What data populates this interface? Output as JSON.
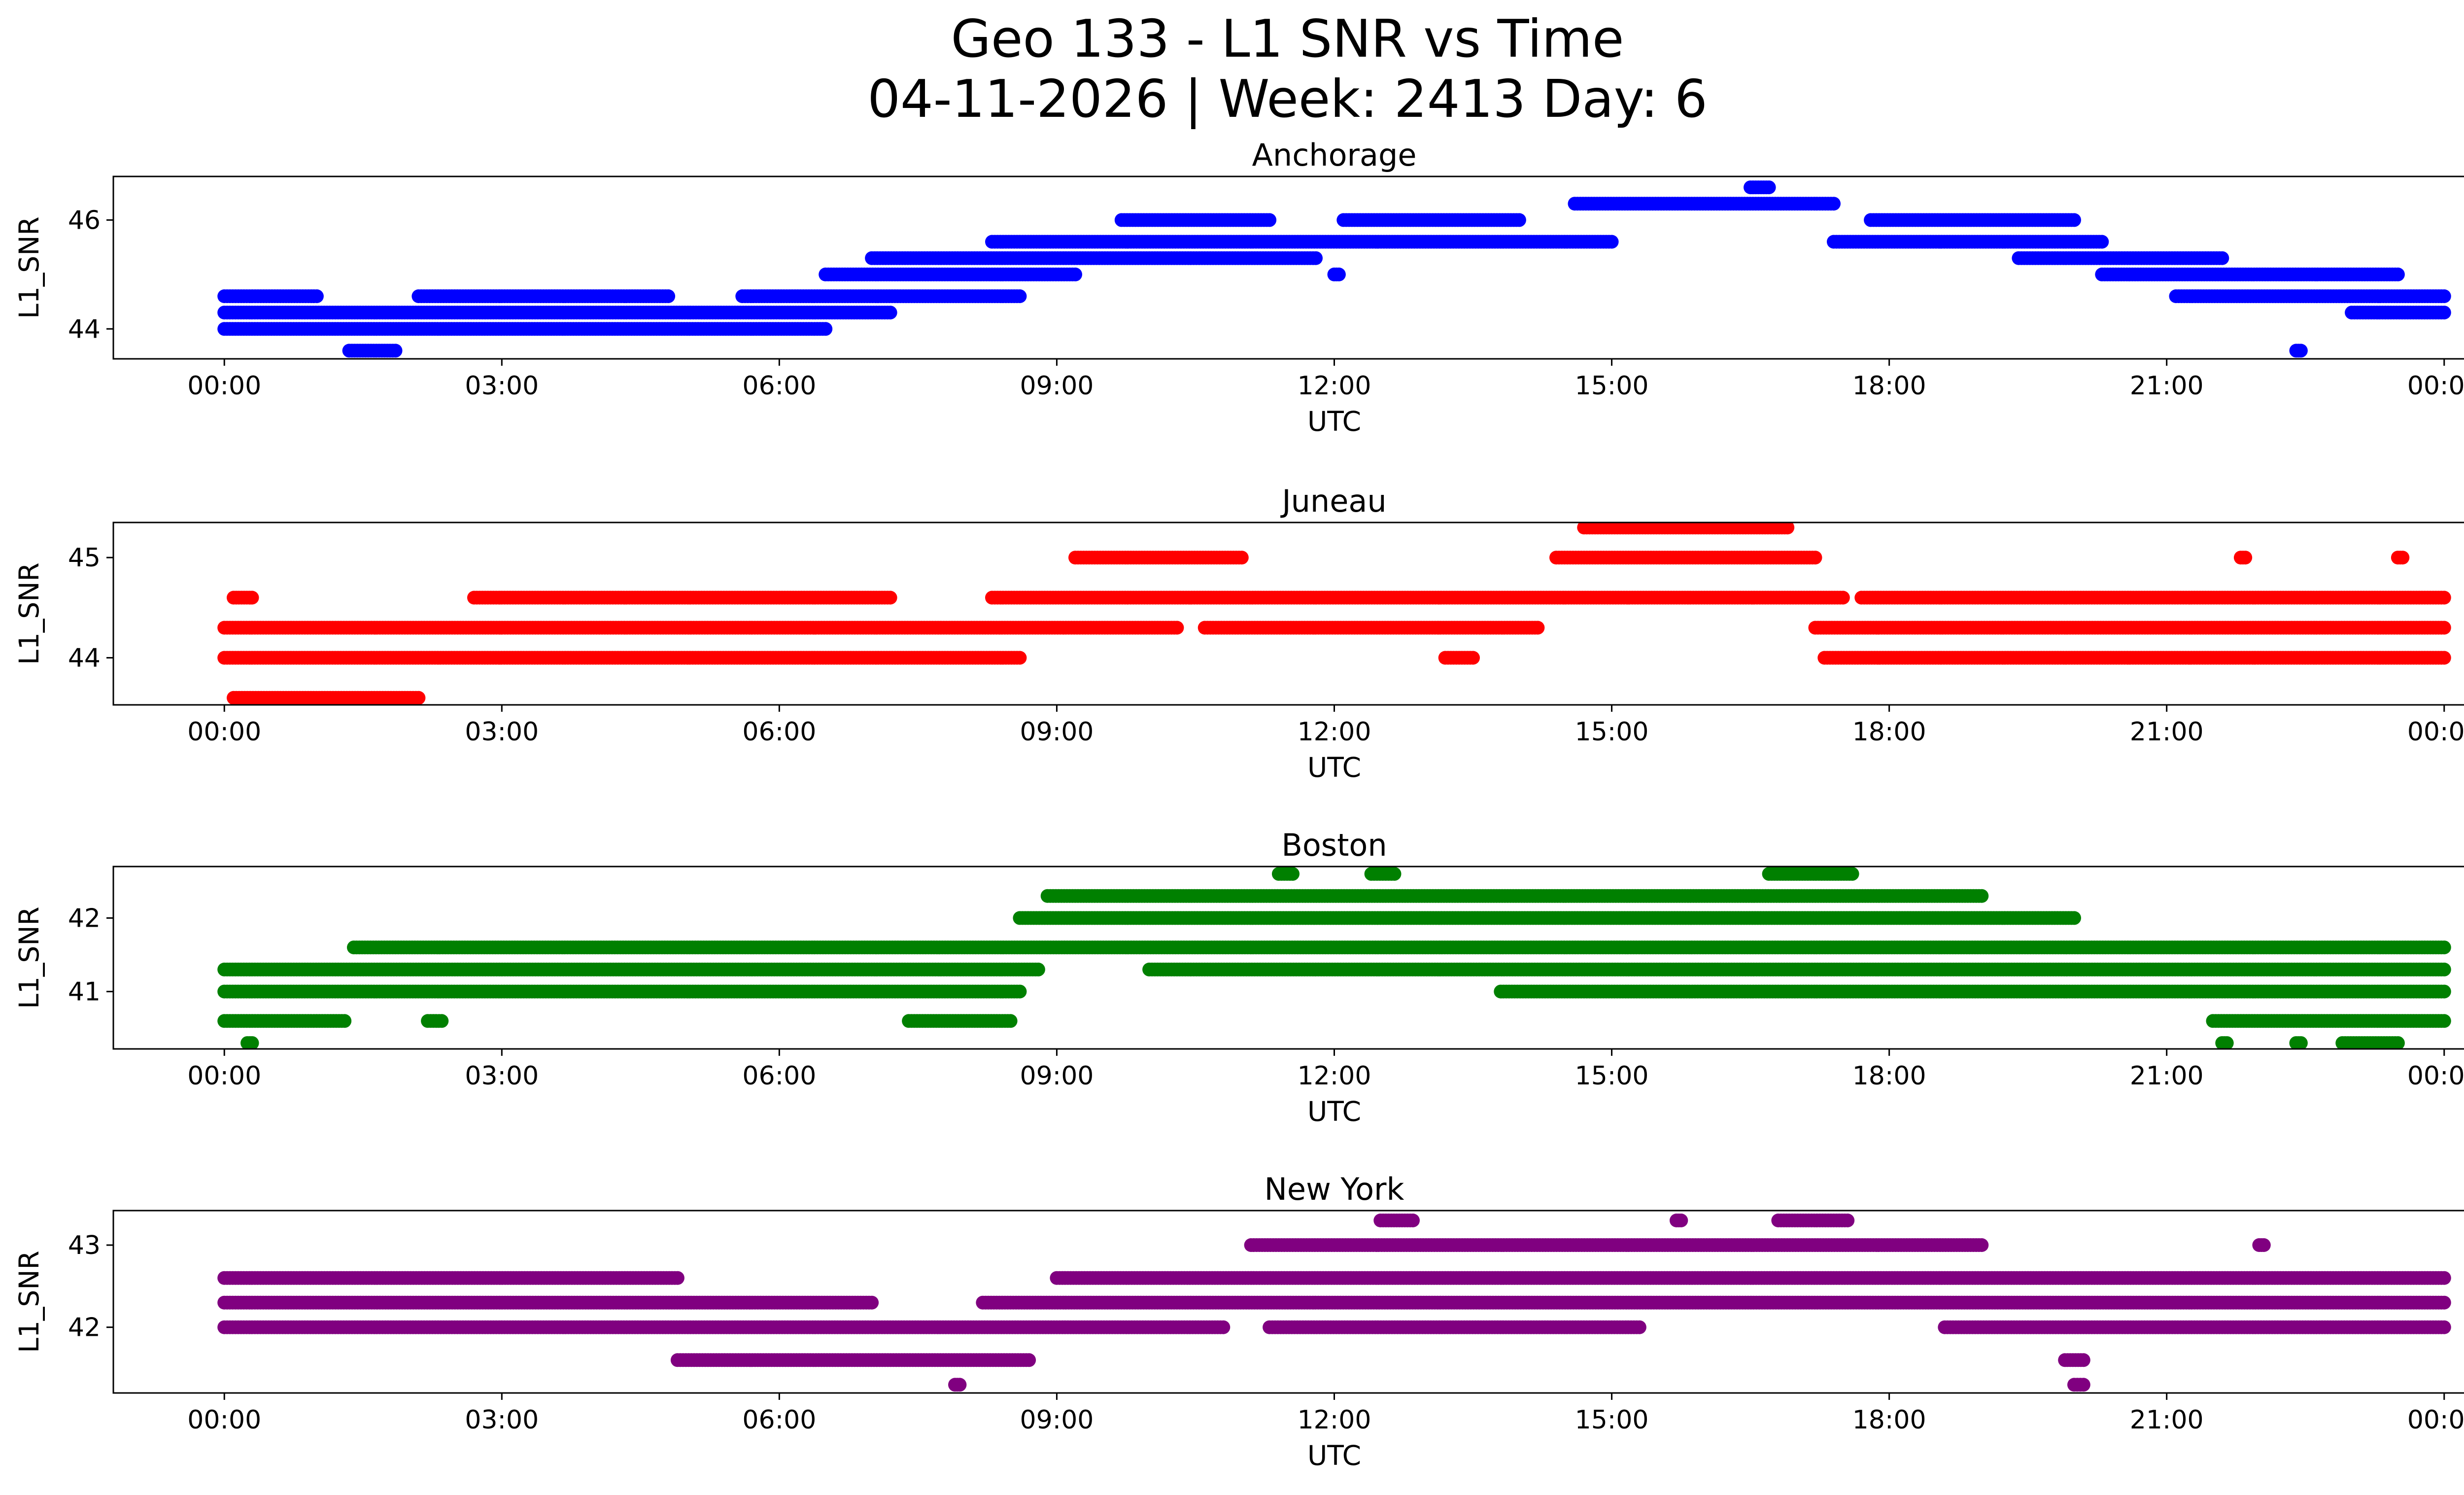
{
  "figure": {
    "title_line1": "Geo 133 - L1 SNR vs Time",
    "title_line2": "04-11-2026 | Week: 2413 Day: 6"
  },
  "chart_data": [
    {
      "type": "scatter",
      "title": "Anchorage",
      "xlabel": "UTC",
      "ylabel": "L1_SNR",
      "color": "#0000ff",
      "xticks": [
        "00:00",
        "03:00",
        "06:00",
        "09:00",
        "12:00",
        "15:00",
        "18:00",
        "21:00",
        "00:00"
      ],
      "xlim_hours": [
        -1.2,
        25.2
      ],
      "ylim": [
        43.45,
        46.8
      ],
      "yticks": [
        44,
        46
      ],
      "levels": [
        43.6,
        44.0,
        44.3,
        44.6,
        45.0,
        45.3,
        45.6,
        46.0,
        46.3,
        46.6
      ],
      "segments": [
        {
          "y": 43.6,
          "from": 1.35,
          "to": 1.85
        },
        {
          "y": 44.0,
          "from": 0.0,
          "to": 6.5
        },
        {
          "y": 44.3,
          "from": 0.0,
          "to": 7.2
        },
        {
          "y": 44.6,
          "from": 0.0,
          "to": 1.0
        },
        {
          "y": 44.6,
          "from": 2.1,
          "to": 4.8
        },
        {
          "y": 44.6,
          "from": 5.6,
          "to": 8.6
        },
        {
          "y": 45.0,
          "from": 6.5,
          "to": 9.2
        },
        {
          "y": 45.3,
          "from": 7.0,
          "to": 11.8
        },
        {
          "y": 45.6,
          "from": 8.3,
          "to": 15.0
        },
        {
          "y": 46.0,
          "from": 9.7,
          "to": 11.3
        },
        {
          "y": 46.0,
          "from": 12.1,
          "to": 14.0
        },
        {
          "y": 46.3,
          "from": 14.6,
          "to": 17.4
        },
        {
          "y": 46.6,
          "from": 16.5,
          "to": 16.7
        },
        {
          "y": 45.6,
          "from": 17.4,
          "to": 20.3
        },
        {
          "y": 46.0,
          "from": 17.8,
          "to": 20.0
        },
        {
          "y": 45.3,
          "from": 19.4,
          "to": 21.6
        },
        {
          "y": 45.0,
          "from": 20.3,
          "to": 23.5
        },
        {
          "y": 44.6,
          "from": 21.1,
          "to": 24.0
        },
        {
          "y": 44.3,
          "from": 23.0,
          "to": 24.0
        },
        {
          "y": 45.0,
          "from": 12.0,
          "to": 12.05
        },
        {
          "y": 43.6,
          "from": 22.4,
          "to": 22.45
        }
      ]
    },
    {
      "type": "scatter",
      "title": "Juneau",
      "xlabel": "UTC",
      "ylabel": "L1_SNR",
      "color": "#ff0000",
      "xticks": [
        "00:00",
        "03:00",
        "06:00",
        "09:00",
        "12:00",
        "15:00",
        "18:00",
        "21:00",
        "00:00"
      ],
      "xlim_hours": [
        -1.2,
        25.2
      ],
      "ylim": [
        43.53,
        45.35
      ],
      "yticks": [
        44,
        45
      ],
      "levels": [
        43.6,
        44.0,
        44.3,
        44.6,
        45.0,
        45.3
      ],
      "segments": [
        {
          "y": 43.6,
          "from": 0.1,
          "to": 2.1
        },
        {
          "y": 44.0,
          "from": 0.0,
          "to": 8.6
        },
        {
          "y": 44.3,
          "from": 0.0,
          "to": 10.3
        },
        {
          "y": 44.3,
          "from": 10.6,
          "to": 14.2
        },
        {
          "y": 44.6,
          "from": 0.1,
          "to": 0.3
        },
        {
          "y": 44.6,
          "from": 2.7,
          "to": 7.2
        },
        {
          "y": 44.6,
          "from": 8.3,
          "to": 17.5
        },
        {
          "y": 45.0,
          "from": 9.2,
          "to": 11.0
        },
        {
          "y": 45.0,
          "from": 14.4,
          "to": 17.2
        },
        {
          "y": 45.3,
          "from": 14.7,
          "to": 16.9
        },
        {
          "y": 44.0,
          "from": 13.2,
          "to": 13.5
        },
        {
          "y": 44.3,
          "from": 17.2,
          "to": 24.0
        },
        {
          "y": 44.0,
          "from": 17.3,
          "to": 24.0
        },
        {
          "y": 44.6,
          "from": 17.7,
          "to": 24.0
        },
        {
          "y": 45.0,
          "from": 21.8,
          "to": 21.85
        },
        {
          "y": 45.0,
          "from": 23.5,
          "to": 23.55
        }
      ]
    },
    {
      "type": "scatter",
      "title": "Boston",
      "xlabel": "UTC",
      "ylabel": "L1_SNR",
      "color": "#008000",
      "xticks": [
        "00:00",
        "03:00",
        "06:00",
        "09:00",
        "12:00",
        "15:00",
        "18:00",
        "21:00",
        "00:00"
      ],
      "xlim_hours": [
        -1.2,
        25.2
      ],
      "ylim": [
        40.22,
        42.7
      ],
      "yticks": [
        41,
        42
      ],
      "levels": [
        40.3,
        40.6,
        41.0,
        41.3,
        41.6,
        42.0,
        42.3,
        42.6
      ],
      "segments": [
        {
          "y": 40.3,
          "from": 0.25,
          "to": 0.3
        },
        {
          "y": 40.6,
          "from": 0.0,
          "to": 1.3
        },
        {
          "y": 40.6,
          "from": 2.2,
          "to": 2.35
        },
        {
          "y": 41.0,
          "from": 0.0,
          "to": 8.6
        },
        {
          "y": 41.3,
          "from": 0.0,
          "to": 8.8
        },
        {
          "y": 41.6,
          "from": 1.4,
          "to": 24.0
        },
        {
          "y": 42.0,
          "from": 8.6,
          "to": 20.0
        },
        {
          "y": 42.3,
          "from": 8.9,
          "to": 19.0
        },
        {
          "y": 42.6,
          "from": 11.4,
          "to": 11.55
        },
        {
          "y": 42.6,
          "from": 12.4,
          "to": 12.65
        },
        {
          "y": 42.6,
          "from": 16.7,
          "to": 17.6
        },
        {
          "y": 41.3,
          "from": 10.0,
          "to": 24.0
        },
        {
          "y": 41.0,
          "from": 13.8,
          "to": 24.0
        },
        {
          "y": 40.6,
          "from": 21.5,
          "to": 24.0
        },
        {
          "y": 40.3,
          "from": 21.6,
          "to": 21.65
        },
        {
          "y": 40.3,
          "from": 22.4,
          "to": 22.45
        },
        {
          "y": 40.3,
          "from": 22.9,
          "to": 23.5
        },
        {
          "y": 40.6,
          "from": 7.4,
          "to": 8.5
        }
      ]
    },
    {
      "type": "scatter",
      "title": "New York",
      "xlabel": "UTC",
      "ylabel": "L1_SNR",
      "color": "#800080",
      "xticks": [
        "00:00",
        "03:00",
        "06:00",
        "09:00",
        "12:00",
        "15:00",
        "18:00",
        "21:00",
        "00:00"
      ],
      "xlim_hours": [
        -1.2,
        25.2
      ],
      "ylim": [
        41.2,
        43.42
      ],
      "yticks": [
        42,
        43
      ],
      "levels": [
        41.3,
        41.6,
        42.0,
        42.3,
        42.6,
        43.0,
        43.3
      ],
      "segments": [
        {
          "y": 42.0,
          "from": 0.0,
          "to": 10.8
        },
        {
          "y": 42.3,
          "from": 0.0,
          "to": 7.0
        },
        {
          "y": 42.6,
          "from": 0.0,
          "to": 4.9
        },
        {
          "y": 41.6,
          "from": 4.9,
          "to": 8.7
        },
        {
          "y": 41.3,
          "from": 7.9,
          "to": 7.95
        },
        {
          "y": 42.3,
          "from": 8.2,
          "to": 24.0
        },
        {
          "y": 42.6,
          "from": 9.0,
          "to": 24.0
        },
        {
          "y": 43.0,
          "from": 11.1,
          "to": 19.0
        },
        {
          "y": 43.3,
          "from": 12.5,
          "to": 12.85
        },
        {
          "y": 43.3,
          "from": 15.7,
          "to": 15.75
        },
        {
          "y": 43.3,
          "from": 16.8,
          "to": 17.55
        },
        {
          "y": 42.0,
          "from": 11.3,
          "to": 15.3
        },
        {
          "y": 42.0,
          "from": 18.6,
          "to": 24.0
        },
        {
          "y": 41.6,
          "from": 19.9,
          "to": 20.1
        },
        {
          "y": 41.3,
          "from": 20.0,
          "to": 20.1
        },
        {
          "y": 43.0,
          "from": 22.0,
          "to": 22.05
        }
      ]
    }
  ]
}
